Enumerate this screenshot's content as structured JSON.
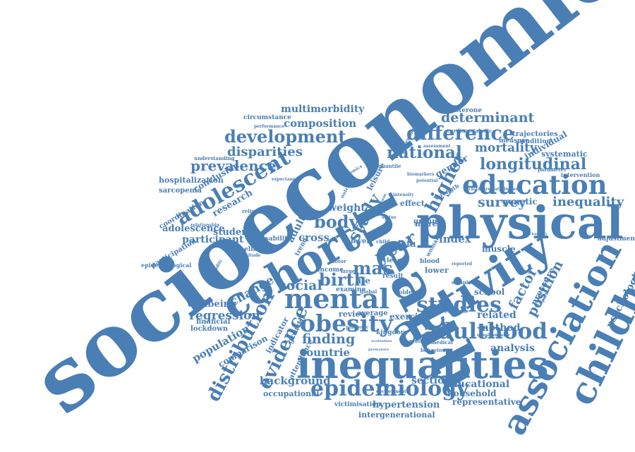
{
  "word_color": "#4a7fb5",
  "background_color": "#ffffff",
  "words": [
    "socioeconomic",
    "health",
    "physical",
    "activity",
    "cohort",
    "inequalities",
    "childhood",
    "association",
    "mental",
    "education",
    "obesity",
    "adulthood",
    "epidemiology",
    "studies",
    "difference",
    "adolescent",
    "development",
    "distribution",
    "evidence",
    "longitudinal",
    "national",
    "prevalence",
    "disparities",
    "higher",
    "study",
    "body",
    "mas",
    "birth",
    "social",
    "year",
    "inequality",
    "survey",
    "factor",
    "position",
    "determinant",
    "mortality",
    "composition",
    "multimorbidity",
    "change",
    "regression",
    "wellbeing",
    "population",
    "comparison",
    "finding",
    "countrie",
    "background",
    "sectional",
    "educational",
    "household",
    "representative",
    "hypertension",
    "intergenerational",
    "victimisation",
    "occupational",
    "analysis",
    "method",
    "related",
    "psychological",
    "adjustment",
    "individual",
    "systematic",
    "trajectories",
    "condition",
    "testosterone",
    "cardiometabolic",
    "gender",
    "genetic",
    "muscle",
    "index",
    "cross",
    "adult",
    "participant",
    "student",
    "adolescence",
    "research",
    "conclusion",
    "hospitalization",
    "sarcopenia",
    "coordination",
    "participation",
    "epidemiological",
    "lockdown",
    "financial",
    "circumstance",
    "loneliness",
    "disability",
    "indicator",
    "growth",
    "review",
    "exercise",
    "average",
    "data",
    "more",
    "lower",
    "school",
    "pressure",
    "effect",
    "group",
    "blood",
    "weight",
    "leisure",
    "kingdom",
    "result",
    "examine",
    "income",
    "attendance",
    "intervention",
    "understanding",
    "religiosity",
    "relationship",
    "magnitude",
    "performance",
    "measure",
    "quantile",
    "expectancy",
    "economics",
    "estimate",
    "sample",
    "level",
    "life",
    "larger",
    "older",
    "lean",
    "woman",
    "child",
    "trend",
    "motor",
    "outcome",
    "global",
    "medical",
    "potential",
    "biomarkers",
    "strength",
    "intensity",
    "greater",
    "disease",
    "status",
    "pandemic",
    "behaviour",
    "multiple",
    "environmental",
    "premature",
    "questionnaire",
    "evaluation",
    "parameter",
    "childcare",
    "attainment",
    "assessment",
    "example",
    "important",
    "technology",
    "morbidity",
    "reported"
  ]
}
